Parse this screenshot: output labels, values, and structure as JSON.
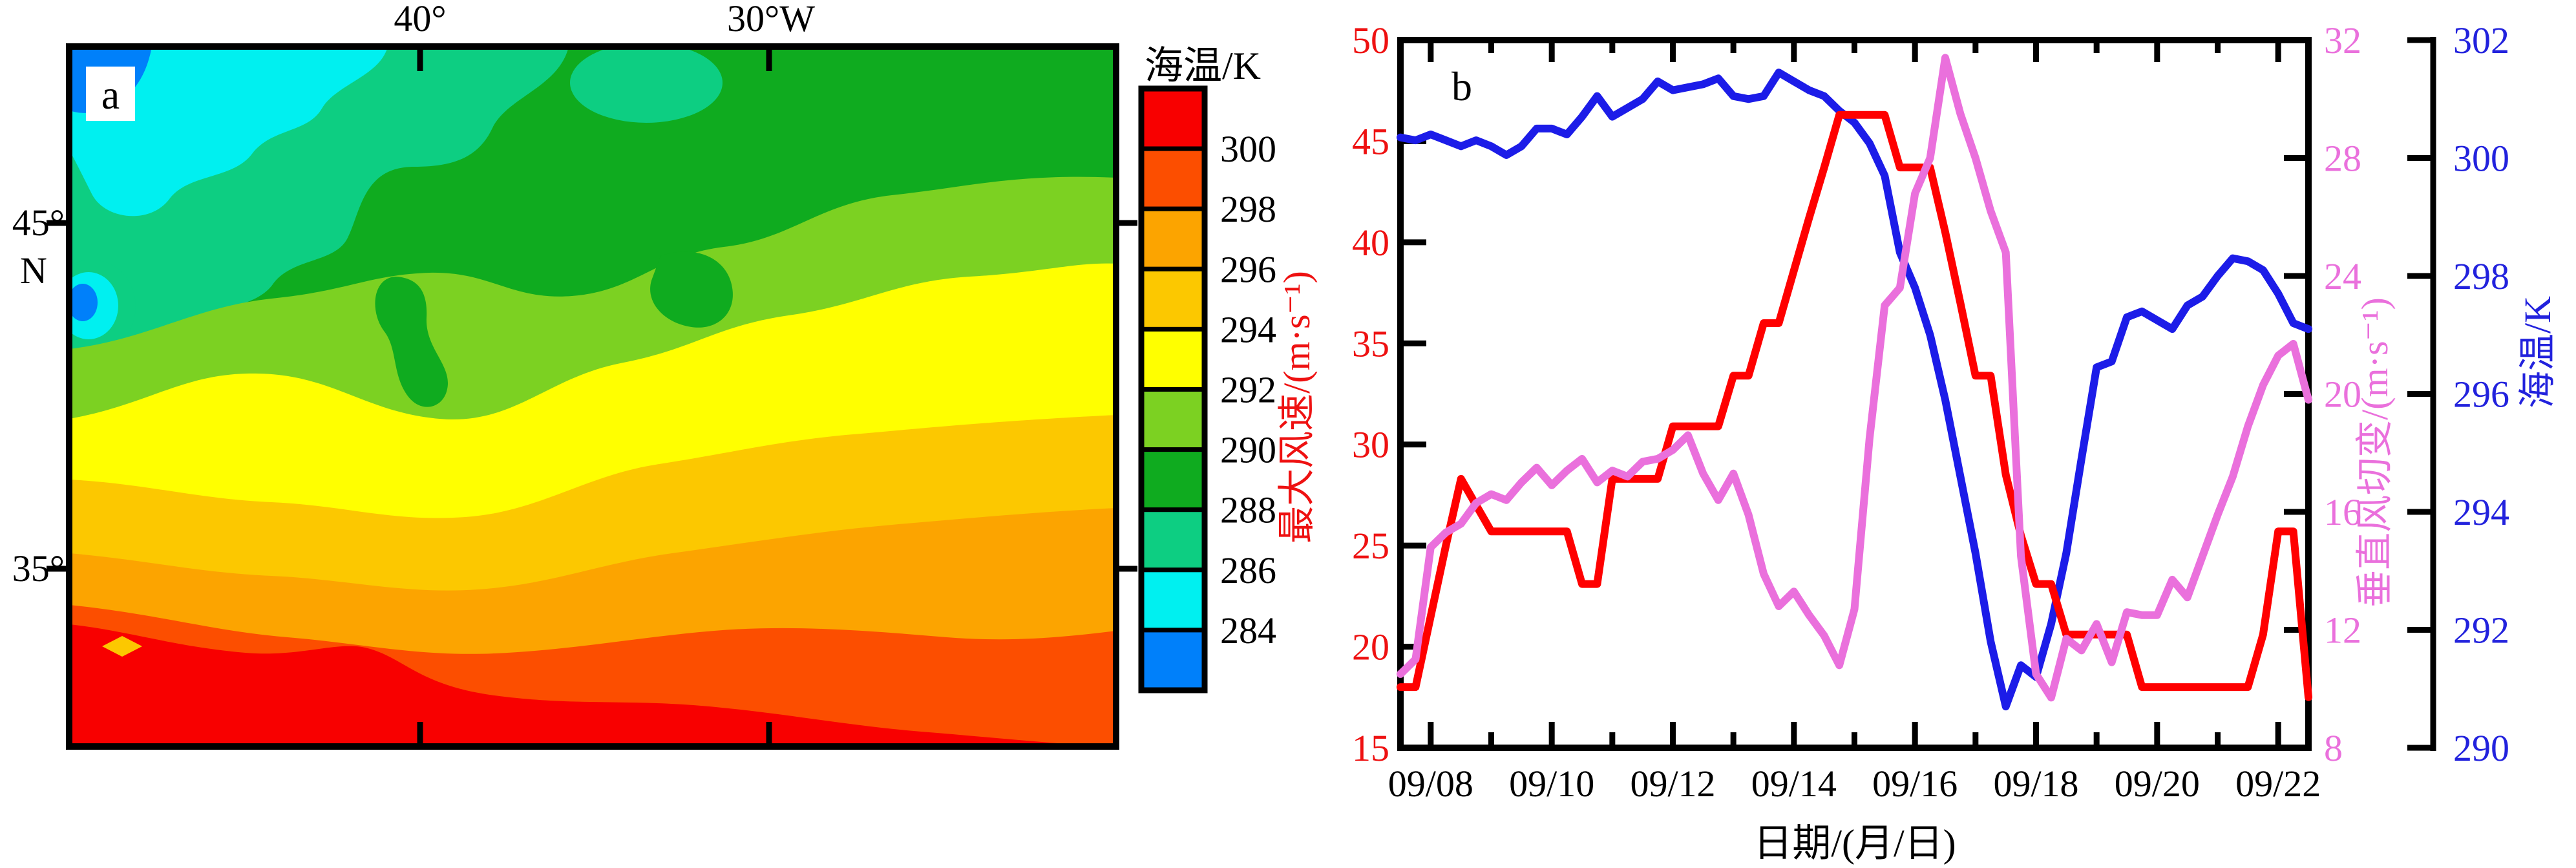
{
  "panels": {
    "a_label": "a",
    "b_label": "b"
  },
  "chart_data": [
    {
      "type": "heatmap",
      "subject": "sea surface temperature contour map",
      "x_tick_labels": [
        "40°",
        "30°W"
      ],
      "y_tick_labels": [
        "45°",
        "N",
        "35°"
      ],
      "palette": {
        "red": "#F80000",
        "orange_red": "#FC4E00",
        "orange": "#FCA400",
        "amber": "#FCC800",
        "yellow": "#FFFF00",
        "yellow_green": "#7CD122",
        "green": "#0FAB1F",
        "sea_green": "#0DCE82",
        "cyan": "#00F0F0",
        "blue": "#0080FA"
      },
      "colorbar": {
        "title": "海温/K",
        "levels": [
          "300",
          "298",
          "296",
          "294",
          "292",
          "290",
          "288",
          "286",
          "284"
        ],
        "colors": [
          "#F80000",
          "#FC4E00",
          "#FCA400",
          "#FCC800",
          "#FFFF00",
          "#7CD122",
          "#0FAB1F",
          "#0DCE82",
          "#00F0F0",
          "#0080FA"
        ]
      }
    },
    {
      "type": "line",
      "xlabel": "日期/(月/日)",
      "x_tick_labels": [
        "09/08",
        "09/10",
        "09/12",
        "09/14",
        "09/16",
        "09/18",
        "09/20",
        "09/22"
      ],
      "x_major_days": [
        8,
        10,
        12,
        14,
        16,
        18,
        20,
        22
      ],
      "x_minor_days": [
        9,
        11,
        13,
        15,
        17,
        19,
        21
      ],
      "x_range": [
        7.5,
        22.5
      ],
      "axes": {
        "wind": {
          "label": "最大风速/(m·s⁻¹)",
          "min": 15,
          "max": 50,
          "ticks": [
            15,
            20,
            25,
            30,
            35,
            40,
            45,
            50
          ],
          "color": "#EE1111"
        },
        "shear": {
          "label": "垂直风切变/(m·s⁻¹)",
          "min": 8,
          "max": 32,
          "ticks": [
            8,
            12,
            16,
            20,
            24,
            28,
            32
          ],
          "color": "#EA70DC"
        },
        "sst": {
          "label": "海温/K",
          "min": 290,
          "max": 302,
          "ticks": [
            290,
            292,
            294,
            296,
            298,
            300,
            302
          ],
          "color": "#2222DD"
        }
      },
      "days": [
        7.5,
        7.75,
        8,
        8.25,
        8.5,
        8.75,
        9,
        9.25,
        9.5,
        9.75,
        10,
        10.25,
        10.5,
        10.75,
        11,
        11.25,
        11.5,
        11.75,
        12,
        12.25,
        12.5,
        12.75,
        13,
        13.25,
        13.5,
        13.75,
        14,
        14.25,
        14.5,
        14.75,
        15,
        15.25,
        15.5,
        15.75,
        16,
        16.25,
        16.5,
        16.75,
        17,
        17.25,
        17.5,
        17.75,
        18,
        18.25,
        18.5,
        18.75,
        19,
        19.25,
        19.5,
        19.75,
        20,
        20.25,
        20.5,
        20.75,
        21,
        21.25,
        21.5,
        21.75,
        22,
        22.25,
        22.5
      ],
      "series": [
        {
          "key": "sst",
          "name": "海温",
          "axis": "sst",
          "color": "#1C1CE8",
          "values": [
            300.35,
            300.3,
            300.4,
            300.3,
            300.2,
            300.3,
            300.2,
            300.05,
            300.2,
            300.5,
            300.5,
            300.4,
            300.7,
            301.05,
            300.7,
            300.85,
            301,
            301.3,
            301.15,
            301.2,
            301.25,
            301.35,
            301.05,
            301,
            301.05,
            301.45,
            301.3,
            301.15,
            301.05,
            300.8,
            300.6,
            300.25,
            299.7,
            298.4,
            297.8,
            297,
            295.9,
            294.6,
            293.3,
            291.8,
            290.7,
            291.4,
            291.2,
            292.1,
            293.3,
            294.9,
            296.45,
            296.55,
            297.3,
            297.4,
            297.25,
            297.1,
            297.5,
            297.65,
            298,
            298.3,
            298.25,
            298.1,
            297.7,
            297.2,
            297.1
          ]
        },
        {
          "key": "wind",
          "name": "最大风速",
          "axis": "wind",
          "color": "#FF0000",
          "values": [
            18,
            18,
            21.5,
            25,
            28.3,
            27,
            25.7,
            25.7,
            25.7,
            25.7,
            25.7,
            25.7,
            23.1,
            23.1,
            28.3,
            28.3,
            28.3,
            28.3,
            30.9,
            30.9,
            30.9,
            30.9,
            33.4,
            33.4,
            36,
            36,
            38.6,
            41.2,
            43.7,
            46.3,
            46.3,
            46.3,
            46.3,
            43.7,
            43.7,
            43.7,
            40.5,
            37,
            33.4,
            33.4,
            28.5,
            25.5,
            23.1,
            23.1,
            20.6,
            20.6,
            20.6,
            20.6,
            20.6,
            18,
            18,
            18,
            18,
            18,
            18,
            18,
            18,
            20.6,
            25.7,
            25.7,
            17.5
          ]
        },
        {
          "key": "shear",
          "name": "垂直风切变",
          "axis": "shear",
          "color": "#EA70DC",
          "values": [
            10.5,
            11,
            14.8,
            15.3,
            15.6,
            16.3,
            16.6,
            16.4,
            17,
            17.5,
            16.9,
            17.4,
            17.8,
            17,
            17.4,
            17.2,
            17.7,
            17.8,
            18.1,
            18.6,
            17.3,
            16.4,
            17.3,
            15.9,
            13.9,
            12.8,
            13.3,
            12.5,
            11.8,
            10.8,
            12.7,
            18.5,
            23,
            23.6,
            26.8,
            28,
            31.4,
            29.5,
            28,
            26.2,
            24.8,
            14.5,
            10.5,
            9.7,
            11.7,
            11.3,
            12.2,
            10.9,
            12.6,
            12.5,
            12.5,
            13.7,
            13.1,
            14.5,
            15.9,
            17.2,
            18.9,
            20.3,
            21.3,
            21.7,
            19.8
          ]
        }
      ]
    }
  ]
}
